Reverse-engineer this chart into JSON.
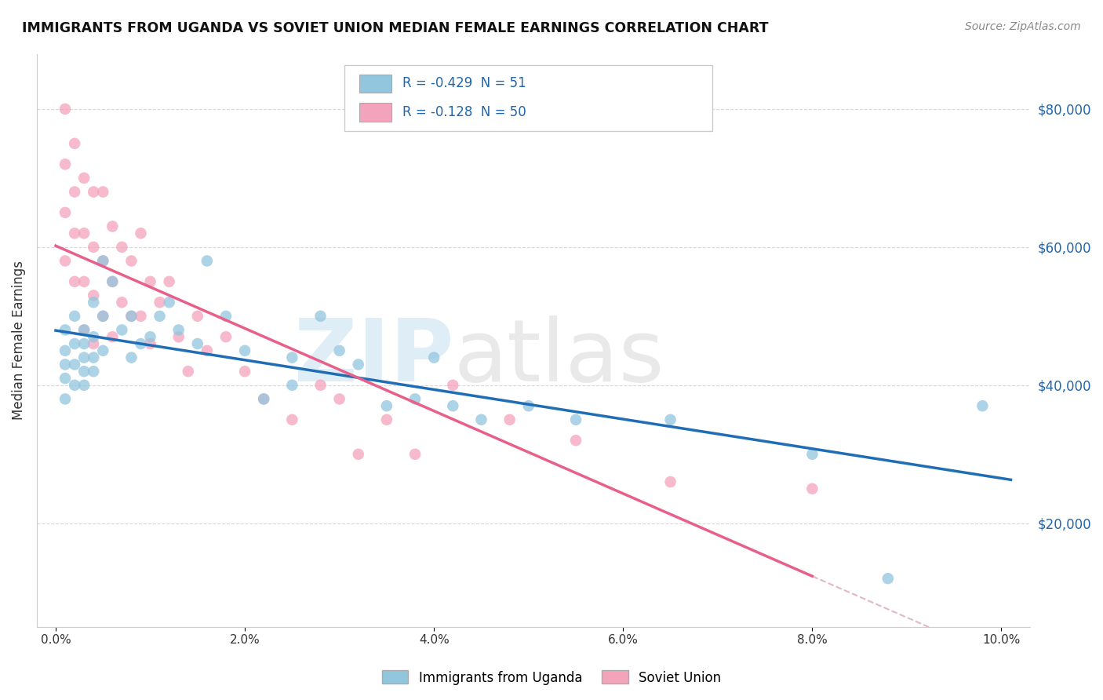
{
  "title": "IMMIGRANTS FROM UGANDA VS SOVIET UNION MEDIAN FEMALE EARNINGS CORRELATION CHART",
  "source": "Source: ZipAtlas.com",
  "ylabel": "Median Female Earnings",
  "legend_label1": "Immigrants from Uganda",
  "legend_label2": "Soviet Union",
  "legend_r1": "-0.429",
  "legend_n1": "51",
  "legend_r2": "-0.128",
  "legend_n2": "50",
  "yticks": [
    20000,
    40000,
    60000,
    80000
  ],
  "ytick_labels": [
    "$20,000",
    "$40,000",
    "$60,000",
    "$80,000"
  ],
  "xlim": [
    -0.002,
    0.103
  ],
  "ylim": [
    5000,
    88000
  ],
  "color_uganda": "#92c5de",
  "color_soviet": "#f4a3bc",
  "line_color_uganda": "#1f6db5",
  "line_color_soviet": "#e8608a",
  "line_color_soviet_dash": "#e0b8c8",
  "uganda_x": [
    0.001,
    0.001,
    0.001,
    0.001,
    0.001,
    0.002,
    0.002,
    0.002,
    0.002,
    0.003,
    0.003,
    0.003,
    0.003,
    0.003,
    0.004,
    0.004,
    0.004,
    0.004,
    0.005,
    0.005,
    0.005,
    0.006,
    0.007,
    0.008,
    0.008,
    0.009,
    0.01,
    0.011,
    0.012,
    0.013,
    0.015,
    0.016,
    0.018,
    0.02,
    0.022,
    0.025,
    0.025,
    0.028,
    0.03,
    0.032,
    0.035,
    0.038,
    0.04,
    0.042,
    0.045,
    0.05,
    0.055,
    0.065,
    0.08,
    0.088,
    0.098
  ],
  "uganda_y": [
    48000,
    45000,
    43000,
    41000,
    38000,
    50000,
    46000,
    43000,
    40000,
    48000,
    46000,
    44000,
    42000,
    40000,
    52000,
    47000,
    44000,
    42000,
    58000,
    50000,
    45000,
    55000,
    48000,
    50000,
    44000,
    46000,
    47000,
    50000,
    52000,
    48000,
    46000,
    58000,
    50000,
    45000,
    38000,
    44000,
    40000,
    50000,
    45000,
    43000,
    37000,
    38000,
    44000,
    37000,
    35000,
    37000,
    35000,
    35000,
    30000,
    12000,
    37000
  ],
  "soviet_x": [
    0.001,
    0.001,
    0.001,
    0.001,
    0.002,
    0.002,
    0.002,
    0.002,
    0.003,
    0.003,
    0.003,
    0.003,
    0.004,
    0.004,
    0.004,
    0.004,
    0.005,
    0.005,
    0.005,
    0.006,
    0.006,
    0.006,
    0.007,
    0.007,
    0.008,
    0.008,
    0.009,
    0.009,
    0.01,
    0.01,
    0.011,
    0.012,
    0.013,
    0.014,
    0.015,
    0.016,
    0.018,
    0.02,
    0.022,
    0.025,
    0.028,
    0.03,
    0.032,
    0.035,
    0.038,
    0.042,
    0.048,
    0.055,
    0.065,
    0.08
  ],
  "soviet_y": [
    80000,
    72000,
    65000,
    58000,
    75000,
    68000,
    62000,
    55000,
    70000,
    62000,
    55000,
    48000,
    68000,
    60000,
    53000,
    46000,
    68000,
    58000,
    50000,
    63000,
    55000,
    47000,
    60000,
    52000,
    58000,
    50000,
    62000,
    50000,
    55000,
    46000,
    52000,
    55000,
    47000,
    42000,
    50000,
    45000,
    47000,
    42000,
    38000,
    35000,
    40000,
    38000,
    30000,
    35000,
    30000,
    40000,
    35000,
    32000,
    26000,
    25000
  ]
}
